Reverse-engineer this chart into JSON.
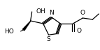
{
  "bg_color": "#ffffff",
  "line_color": "#000000",
  "text_color": "#000000",
  "figsize": [
    1.43,
    0.72
  ],
  "dpi": 100,
  "xlim": [
    0,
    143
  ],
  "ylim": [
    0,
    72
  ],
  "fs": 6.5
}
